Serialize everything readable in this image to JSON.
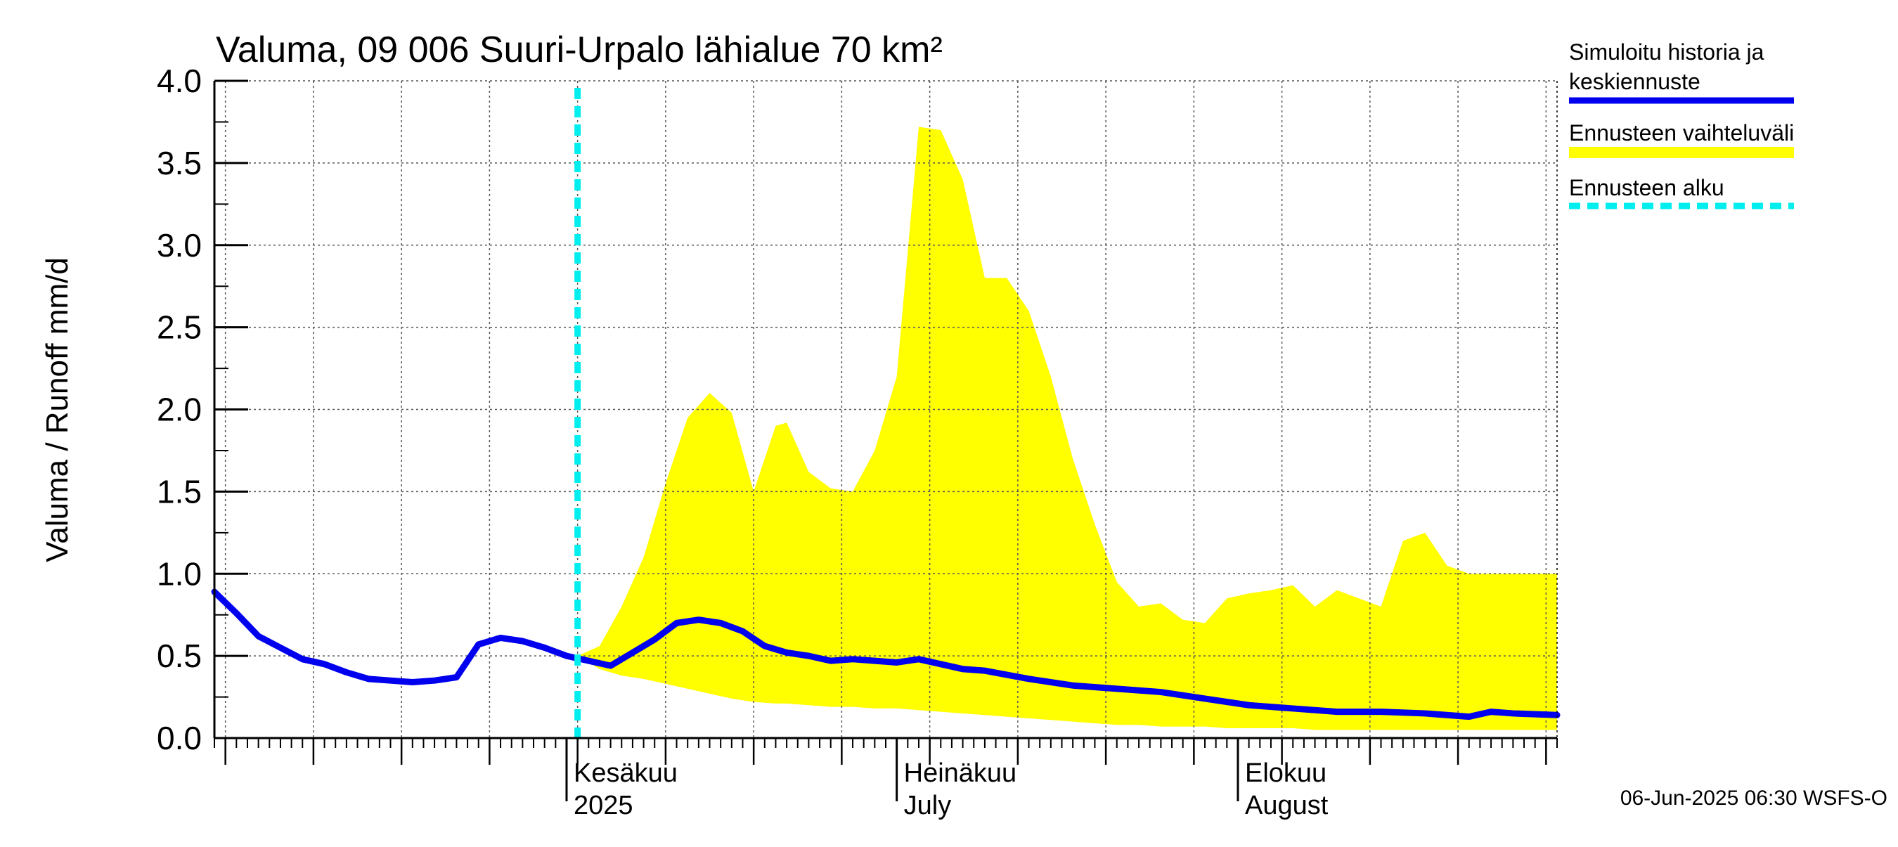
{
  "chart_data": {
    "type": "area",
    "title": "Valuma, 09 006 Suuri-Urpalo lähialue 70 km²",
    "ylabel": "Valuma / Runoff    mm/d",
    "ylim": [
      0,
      4
    ],
    "yticks": [
      "0.0",
      "0.5",
      "1.0",
      "1.5",
      "2.0",
      "2.5",
      "3.0",
      "3.5",
      "4.0"
    ],
    "xlim": [
      "2025-04-30",
      "2025-08-30"
    ],
    "grid": true,
    "legend_position": "right",
    "month_labels": [
      {
        "date": "2025-06-01",
        "fi": "Kesäkuu",
        "en": "2025"
      },
      {
        "date": "2025-07-01",
        "fi": "Heinäkuu",
        "en": "July"
      },
      {
        "date": "2025-08-01",
        "fi": "Elokuu",
        "en": "August"
      }
    ],
    "forecast_start": "2025-06-02",
    "legend": [
      {
        "label_lines": [
          "Simuloitu historia ja",
          "keskiennuste"
        ],
        "color": "#0000ee",
        "style": "solid"
      },
      {
        "label_lines": [
          "Ennusteen vaihteluväli"
        ],
        "color": "#ffff00",
        "style": "solid"
      },
      {
        "label_lines": [
          "Ennusteen alku"
        ],
        "color": "#00eeee",
        "style": "dashed"
      }
    ],
    "footer": "06-Jun-2025 06:30 WSFS-O",
    "colors": {
      "series": "#0000ee",
      "band": "#ffff00",
      "forecast_line": "#00eeee",
      "grid": "#555555"
    },
    "series": [
      {
        "role": "simulated_and_median",
        "x": [
          "2025-04-30",
          "2025-05-02",
          "2025-05-04",
          "2025-05-06",
          "2025-05-08",
          "2025-05-10",
          "2025-05-12",
          "2025-05-14",
          "2025-05-16",
          "2025-05-18",
          "2025-05-20",
          "2025-05-22",
          "2025-05-24",
          "2025-05-26",
          "2025-05-28",
          "2025-05-30",
          "2025-06-01",
          "2025-06-03",
          "2025-06-05",
          "2025-06-07",
          "2025-06-09",
          "2025-06-11",
          "2025-06-13",
          "2025-06-15",
          "2025-06-17",
          "2025-06-19",
          "2025-06-21",
          "2025-06-23",
          "2025-06-25",
          "2025-06-27",
          "2025-06-29",
          "2025-07-01",
          "2025-07-03",
          "2025-07-05",
          "2025-07-07",
          "2025-07-09",
          "2025-07-13",
          "2025-07-17",
          "2025-07-21",
          "2025-07-25",
          "2025-07-29",
          "2025-08-02",
          "2025-08-06",
          "2025-08-10",
          "2025-08-14",
          "2025-08-18",
          "2025-08-22",
          "2025-08-24",
          "2025-08-26",
          "2025-08-30"
        ],
        "y": [
          0.89,
          0.76,
          0.62,
          0.55,
          0.48,
          0.45,
          0.4,
          0.36,
          0.35,
          0.34,
          0.35,
          0.37,
          0.57,
          0.61,
          0.59,
          0.55,
          0.5,
          0.47,
          0.44,
          0.52,
          0.6,
          0.7,
          0.72,
          0.7,
          0.65,
          0.56,
          0.52,
          0.5,
          0.47,
          0.48,
          0.47,
          0.46,
          0.48,
          0.45,
          0.42,
          0.41,
          0.36,
          0.32,
          0.3,
          0.28,
          0.24,
          0.2,
          0.18,
          0.16,
          0.16,
          0.15,
          0.13,
          0.16,
          0.15,
          0.14
        ]
      }
    ],
    "band": {
      "x": [
        "2025-06-02",
        "2025-06-04",
        "2025-06-06",
        "2025-06-08",
        "2025-06-10",
        "2025-06-12",
        "2025-06-14",
        "2025-06-16",
        "2025-06-18",
        "2025-06-20",
        "2025-06-21",
        "2025-06-23",
        "2025-06-25",
        "2025-06-27",
        "2025-06-29",
        "2025-07-01",
        "2025-07-03",
        "2025-07-05",
        "2025-07-07",
        "2025-07-09",
        "2025-07-11",
        "2025-07-13",
        "2025-07-15",
        "2025-07-17",
        "2025-07-19",
        "2025-07-21",
        "2025-07-23",
        "2025-07-25",
        "2025-07-27",
        "2025-07-29",
        "2025-07-31",
        "2025-08-02",
        "2025-08-04",
        "2025-08-06",
        "2025-08-08",
        "2025-08-10",
        "2025-08-12",
        "2025-08-14",
        "2025-08-16",
        "2025-08-18",
        "2025-08-20",
        "2025-08-22",
        "2025-08-24",
        "2025-08-26",
        "2025-08-28",
        "2025-08-30"
      ],
      "upper": [
        0.5,
        0.56,
        0.8,
        1.1,
        1.55,
        1.95,
        2.1,
        1.98,
        1.5,
        1.9,
        1.92,
        1.62,
        1.52,
        1.5,
        1.75,
        2.2,
        3.72,
        3.7,
        3.4,
        2.8,
        2.8,
        2.6,
        2.2,
        1.7,
        1.3,
        0.95,
        0.8,
        0.82,
        0.72,
        0.7,
        0.85,
        0.88,
        0.9,
        0.93,
        0.8,
        0.9,
        0.85,
        0.8,
        1.2,
        1.25,
        1.05,
        1.0,
        1.0,
        1.0,
        1.0,
        1.0
      ],
      "lower": [
        0.5,
        0.42,
        0.38,
        0.36,
        0.33,
        0.3,
        0.27,
        0.24,
        0.22,
        0.21,
        0.21,
        0.2,
        0.19,
        0.19,
        0.18,
        0.18,
        0.17,
        0.16,
        0.15,
        0.14,
        0.13,
        0.12,
        0.11,
        0.1,
        0.09,
        0.08,
        0.08,
        0.07,
        0.07,
        0.07,
        0.06,
        0.06,
        0.06,
        0.06,
        0.05,
        0.05,
        0.05,
        0.05,
        0.05,
        0.05,
        0.05,
        0.05,
        0.05,
        0.05,
        0.05,
        0.05
      ]
    }
  }
}
